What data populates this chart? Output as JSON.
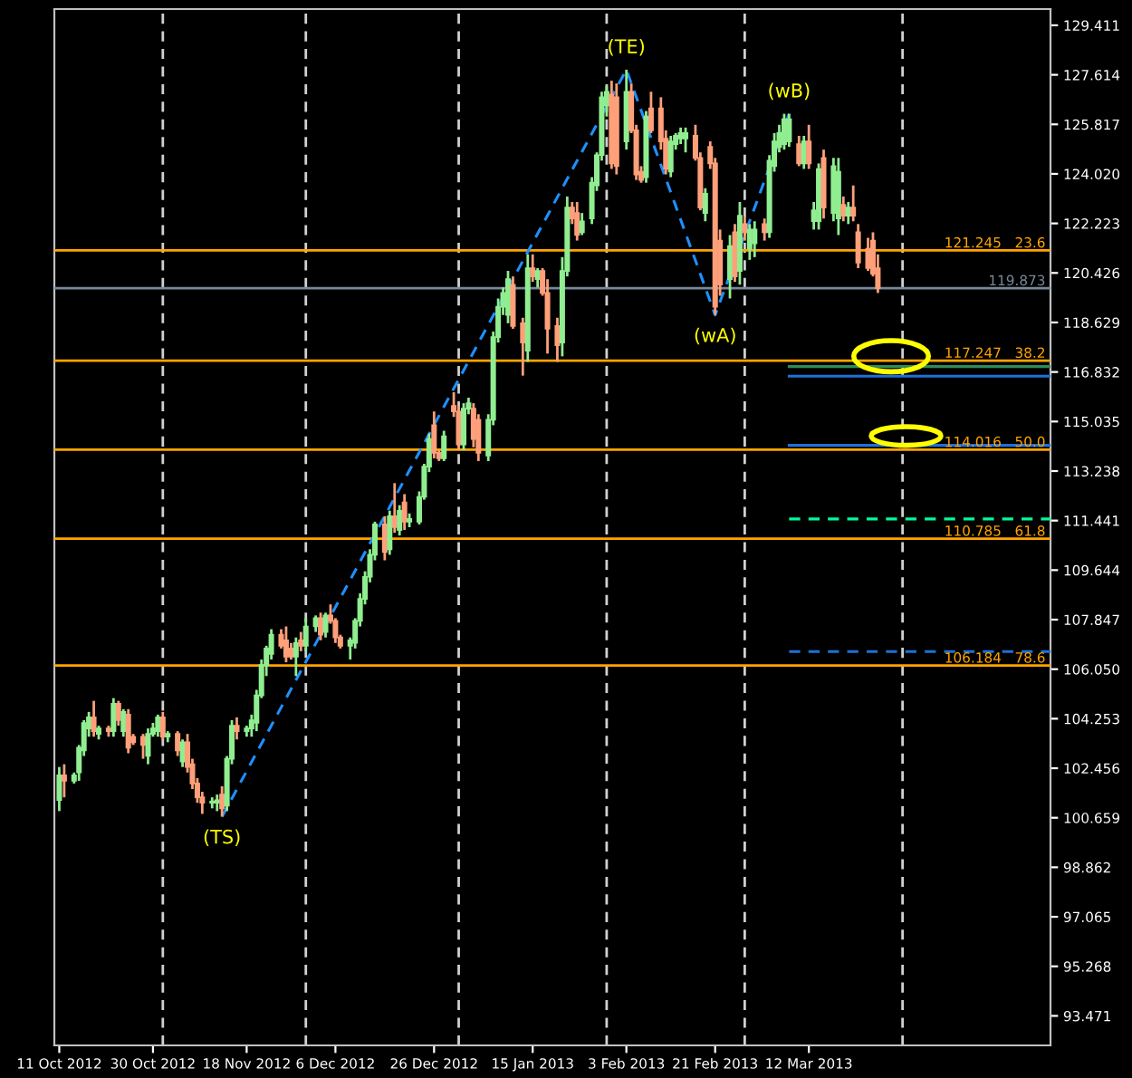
{
  "chart_data": {
    "type": "candlestick",
    "x": [
      "2012-10-11",
      "2012-10-12",
      "2012-10-14",
      "2012-10-15",
      "2012-10-16",
      "2012-10-17",
      "2012-10-18",
      "2012-10-19",
      "2012-10-21",
      "2012-10-22",
      "2012-10-23",
      "2012-10-24",
      "2012-10-25",
      "2012-10-26",
      "2012-10-28",
      "2012-10-29",
      "2012-10-30",
      "2012-10-31",
      "2012-11-01",
      "2012-11-02",
      "2012-11-04",
      "2012-11-05",
      "2012-11-06",
      "2012-11-07",
      "2012-11-08",
      "2012-11-09",
      "2012-11-11",
      "2012-11-12",
      "2012-11-13",
      "2012-11-14",
      "2012-11-15",
      "2012-11-16",
      "2012-11-18",
      "2012-11-19",
      "2012-11-20",
      "2012-11-21",
      "2012-11-22",
      "2012-11-23",
      "2012-11-25",
      "2012-11-26",
      "2012-11-27",
      "2012-11-28",
      "2012-11-29",
      "2012-11-30",
      "2012-12-02",
      "2012-12-03",
      "2012-12-04",
      "2012-12-05",
      "2012-12-06",
      "2012-12-07",
      "2012-12-09",
      "2012-12-10",
      "2012-12-11",
      "2012-12-12",
      "2012-12-13",
      "2012-12-14",
      "2012-12-16",
      "2012-12-17",
      "2012-12-18",
      "2012-12-19",
      "2012-12-20",
      "2012-12-21",
      "2012-12-23",
      "2012-12-24",
      "2012-12-25",
      "2012-12-26",
      "2012-12-27",
      "2012-12-28",
      "2012-12-30",
      "2012-12-31",
      "2013-01-01",
      "2013-01-02",
      "2013-01-03",
      "2013-01-04",
      "2013-01-06",
      "2013-01-07",
      "2013-01-08",
      "2013-01-09",
      "2013-01-10",
      "2013-01-11",
      "2013-01-13",
      "2013-01-14",
      "2013-01-15",
      "2013-01-16",
      "2013-01-17",
      "2013-01-18",
      "2013-01-20",
      "2013-01-21",
      "2013-01-22",
      "2013-01-23",
      "2013-01-24",
      "2013-01-25",
      "2013-01-27",
      "2013-01-28",
      "2013-01-29",
      "2013-01-30",
      "2013-01-31",
      "2013-02-01",
      "2013-02-03",
      "2013-02-04",
      "2013-02-05",
      "2013-02-06",
      "2013-02-07",
      "2013-02-08",
      "2013-02-10",
      "2013-02-11",
      "2013-02-12",
      "2013-02-13",
      "2013-02-14",
      "2013-02-15",
      "2013-02-17",
      "2013-02-18",
      "2013-02-19",
      "2013-02-20",
      "2013-02-21",
      "2013-02-22",
      "2013-02-24",
      "2013-02-25",
      "2013-02-26",
      "2013-02-27",
      "2013-02-28",
      "2013-03-01",
      "2013-03-03",
      "2013-03-04",
      "2013-03-05",
      "2013-03-06",
      "2013-03-07",
      "2013-03-08",
      "2013-03-10",
      "2013-03-11",
      "2013-03-12",
      "2013-03-13",
      "2013-03-14",
      "2013-03-15",
      "2013-03-17",
      "2013-03-18",
      "2013-03-19",
      "2013-03-20",
      "2013-03-21",
      "2013-03-22",
      "2013-03-24",
      "2013-03-25",
      "2013-03-26"
    ],
    "ohlc": [
      [
        101.3,
        102.5,
        100.9,
        102.2
      ],
      [
        102.2,
        102.6,
        101.4,
        102.0
      ],
      [
        102.0,
        102.3,
        101.9,
        102.2
      ],
      [
        102.3,
        103.3,
        102.0,
        103.2
      ],
      [
        103.1,
        104.2,
        102.9,
        104.1
      ],
      [
        103.9,
        104.5,
        103.6,
        104.3
      ],
      [
        104.3,
        104.9,
        103.6,
        103.8
      ],
      [
        103.7,
        104.0,
        103.5,
        103.9
      ],
      [
        103.9,
        104.0,
        103.6,
        103.8
      ],
      [
        103.8,
        105.0,
        103.6,
        104.8
      ],
      [
        104.8,
        104.9,
        104.0,
        104.2
      ],
      [
        103.8,
        104.6,
        103.6,
        104.5
      ],
      [
        104.4,
        104.6,
        103.0,
        103.2
      ],
      [
        103.6,
        103.7,
        103.3,
        103.4
      ],
      [
        103.6,
        103.7,
        102.8,
        103.3
      ],
      [
        102.9,
        103.9,
        102.6,
        103.7
      ],
      [
        103.7,
        104.1,
        103.6,
        103.9
      ],
      [
        103.8,
        104.4,
        103.6,
        104.3
      ],
      [
        104.3,
        104.5,
        103.5,
        103.6
      ],
      [
        103.6,
        103.8,
        103.4,
        103.7
      ],
      [
        103.7,
        103.8,
        102.9,
        103.1
      ],
      [
        102.7,
        103.5,
        102.5,
        103.4
      ],
      [
        103.4,
        103.7,
        102.3,
        102.5
      ],
      [
        102.6,
        102.8,
        101.7,
        101.9
      ],
      [
        101.9,
        102.1,
        101.2,
        101.4
      ],
      [
        101.4,
        101.6,
        100.8,
        101.2
      ],
      [
        101.2,
        101.4,
        101.0,
        101.25
      ],
      [
        101.2,
        101.5,
        100.9,
        101.3
      ],
      [
        101.5,
        101.8,
        100.7,
        101.0
      ],
      [
        101.1,
        102.9,
        100.9,
        102.8
      ],
      [
        102.8,
        104.2,
        102.6,
        104.0
      ],
      [
        104.0,
        104.3,
        103.5,
        103.8
      ],
      [
        103.8,
        104.0,
        103.6,
        103.9
      ],
      [
        103.9,
        104.4,
        103.6,
        104.2
      ],
      [
        104.1,
        105.3,
        103.8,
        105.1
      ],
      [
        105.1,
        106.4,
        105.0,
        106.2
      ],
      [
        106.2,
        106.9,
        105.8,
        106.8
      ],
      [
        106.6,
        107.5,
        106.4,
        107.3
      ],
      [
        107.3,
        107.5,
        106.8,
        106.9
      ],
      [
        107.1,
        107.6,
        106.3,
        106.5
      ],
      [
        106.8,
        107.0,
        106.4,
        106.5
      ],
      [
        106.5,
        107.2,
        105.8,
        107.0
      ],
      [
        107.1,
        107.4,
        106.7,
        106.9
      ],
      [
        106.9,
        107.9,
        106.7,
        107.6
      ],
      [
        107.6,
        108.0,
        107.4,
        107.9
      ],
      [
        107.9,
        108.1,
        107.1,
        107.3
      ],
      [
        107.4,
        108.1,
        107.2,
        108.0
      ],
      [
        108.0,
        108.4,
        107.7,
        107.8
      ],
      [
        107.8,
        107.9,
        107.0,
        107.2
      ],
      [
        107.2,
        107.3,
        106.8,
        106.9
      ],
      [
        106.9,
        107.2,
        106.4,
        107.1
      ],
      [
        107.0,
        107.9,
        106.8,
        107.8
      ],
      [
        107.8,
        108.8,
        107.6,
        108.6
      ],
      [
        108.6,
        109.6,
        108.4,
        109.4
      ],
      [
        109.4,
        110.4,
        109.2,
        110.2
      ],
      [
        110.2,
        111.4,
        110.0,
        111.3
      ],
      [
        111.3,
        111.6,
        110.0,
        110.3
      ],
      [
        110.4,
        111.8,
        110.2,
        111.6
      ],
      [
        111.6,
        112.8,
        111.0,
        111.2
      ],
      [
        111.1,
        112.0,
        110.9,
        111.8
      ],
      [
        112.1,
        112.4,
        111.1,
        111.4
      ],
      [
        111.4,
        111.7,
        111.2,
        111.5
      ],
      [
        111.4,
        112.5,
        111.3,
        112.3
      ],
      [
        112.3,
        113.5,
        112.2,
        113.4
      ],
      [
        113.4,
        114.6,
        113.2,
        114.4
      ],
      [
        114.9,
        115.4,
        113.7,
        113.9
      ],
      [
        113.9,
        114.0,
        113.6,
        113.7
      ],
      [
        113.7,
        114.7,
        113.6,
        114.5
      ],
      [
        115.6,
        116.1,
        115.2,
        115.4
      ],
      [
        115.4,
        115.6,
        114.0,
        114.2
      ],
      [
        114.2,
        115.7,
        114.0,
        115.5
      ],
      [
        115.5,
        115.9,
        115.3,
        115.7
      ],
      [
        115.5,
        115.7,
        114.1,
        114.4
      ],
      [
        115.1,
        115.3,
        113.6,
        113.9
      ],
      [
        113.8,
        115.3,
        113.6,
        115.1
      ],
      [
        115.1,
        118.3,
        114.9,
        118.1
      ],
      [
        118.1,
        119.5,
        117.9,
        119.2
      ],
      [
        119.2,
        119.9,
        118.9,
        119.7
      ],
      [
        118.9,
        120.5,
        118.6,
        120.2
      ],
      [
        120.0,
        120.3,
        118.4,
        118.5
      ],
      [
        118.6,
        118.8,
        116.7,
        117.9
      ],
      [
        117.6,
        121.1,
        117.2,
        120.6
      ],
      [
        120.6,
        121.1,
        120.1,
        120.3
      ],
      [
        120.2,
        120.6,
        119.9,
        120.5
      ],
      [
        120.5,
        120.6,
        119.6,
        119.7
      ],
      [
        119.7,
        120.2,
        117.5,
        118.4
      ],
      [
        118.5,
        118.8,
        117.2,
        117.8
      ],
      [
        117.9,
        121.0,
        117.4,
        120.5
      ],
      [
        120.5,
        123.2,
        120.3,
        122.8
      ],
      [
        122.8,
        123.0,
        122.2,
        122.4
      ],
      [
        122.6,
        123.0,
        121.6,
        121.8
      ],
      [
        121.9,
        122.6,
        121.8,
        122.3
      ],
      [
        122.4,
        123.9,
        122.2,
        123.7
      ],
      [
        123.6,
        124.8,
        123.4,
        124.7
      ],
      [
        124.7,
        127.0,
        124.5,
        126.8
      ],
      [
        126.5,
        127.2,
        126.1,
        127.0
      ],
      [
        126.9,
        127.4,
        124.2,
        124.4
      ],
      [
        126.8,
        127.3,
        124.0,
        124.3
      ],
      [
        125.2,
        127.8,
        124.9,
        127.0
      ],
      [
        127.0,
        127.3,
        125.5,
        125.6
      ],
      [
        125.6,
        125.8,
        123.8,
        124.0
      ],
      [
        124.1,
        124.3,
        123.7,
        123.8
      ],
      [
        123.9,
        126.3,
        123.7,
        126.1
      ],
      [
        126.4,
        127.0,
        125.5,
        125.6
      ],
      [
        126.4,
        126.8,
        124.9,
        125.2
      ],
      [
        125.3,
        125.6,
        124.0,
        124.2
      ],
      [
        124.1,
        125.4,
        123.9,
        125.2
      ],
      [
        125.1,
        125.5,
        124.9,
        125.4
      ],
      [
        125.3,
        125.7,
        125.1,
        125.5
      ],
      [
        125.3,
        125.7,
        124.8,
        125.5
      ],
      [
        125.4,
        125.8,
        124.5,
        124.6
      ],
      [
        124.6,
        124.8,
        122.7,
        122.8
      ],
      [
        122.6,
        123.5,
        122.3,
        123.3
      ],
      [
        125.0,
        125.2,
        124.2,
        124.4
      ],
      [
        124.4,
        124.6,
        118.9,
        119.2
      ],
      [
        121.6,
        122.0,
        119.6,
        120.0
      ],
      [
        120.2,
        121.8,
        119.5,
        121.4
      ],
      [
        121.9,
        122.2,
        120.1,
        120.3
      ],
      [
        120.5,
        123.0,
        120.0,
        122.5
      ],
      [
        122.2,
        122.5,
        121.6,
        121.9
      ],
      [
        121.3,
        122.2,
        120.9,
        122.0
      ],
      [
        121.5,
        122.3,
        121.0,
        122.0
      ],
      [
        122.2,
        122.4,
        121.6,
        121.9
      ],
      [
        121.9,
        124.7,
        121.7,
        124.5
      ],
      [
        124.3,
        125.5,
        124.1,
        125.2
      ],
      [
        125.0,
        125.8,
        124.8,
        125.5
      ],
      [
        125.1,
        126.2,
        124.9,
        126.0
      ],
      [
        125.2,
        126.2,
        125.0,
        126.0
      ],
      [
        125.1,
        125.4,
        124.3,
        124.4
      ],
      [
        124.4,
        125.4,
        124.2,
        125.2
      ],
      [
        125.2,
        125.8,
        124.2,
        124.4
      ],
      [
        122.3,
        123.0,
        122.0,
        122.7
      ],
      [
        122.3,
        124.4,
        122.0,
        124.2
      ],
      [
        124.6,
        124.9,
        122.4,
        122.8
      ],
      [
        122.6,
        124.6,
        122.3,
        124.3
      ],
      [
        122.4,
        124.6,
        121.8,
        124.1
      ],
      [
        122.9,
        123.2,
        122.3,
        122.5
      ],
      [
        122.5,
        123.0,
        122.2,
        122.8
      ],
      [
        122.8,
        123.6,
        122.3,
        122.5
      ],
      [
        121.9,
        122.2,
        120.6,
        120.8
      ],
      [
        121.3,
        121.7,
        120.5,
        120.6
      ],
      [
        121.6,
        121.9,
        120.3,
        120.4
      ],
      [
        120.6,
        121.1,
        119.7,
        119.873
      ]
    ],
    "colors": [
      "#90ee90",
      "#ffa07a",
      "#90ee90",
      "#90ee90",
      "#90ee90",
      "#90ee90",
      "#ffa07a",
      "#90ee90",
      "#ffa07a",
      "#90ee90",
      "#ffa07a",
      "#90ee90",
      "#ffa07a",
      "#ffa07a",
      "#ffa07a",
      "#90ee90",
      "#90ee90",
      "#90ee90",
      "#ffa07a",
      "#90ee90",
      "#ffa07a",
      "#90ee90",
      "#ffa07a",
      "#ffa07a",
      "#ffa07a",
      "#ffa07a",
      "#90ee90",
      "#90ee90",
      "#ffa07a",
      "#90ee90",
      "#90ee90",
      "#ffa07a",
      "#90ee90",
      "#90ee90",
      "#90ee90",
      "#90ee90",
      "#90ee90",
      "#90ee90",
      "#ffa07a",
      "#ffa07a",
      "#ffa07a",
      "#90ee90",
      "#ffa07a",
      "#90ee90",
      "#90ee90",
      "#ffa07a",
      "#90ee90",
      "#ffa07a",
      "#ffa07a",
      "#ffa07a",
      "#90ee90",
      "#90ee90",
      "#90ee90",
      "#90ee90",
      "#90ee90",
      "#90ee90",
      "#ffa07a",
      "#90ee90",
      "#ffa07a",
      "#90ee90",
      "#ffa07a",
      "#90ee90",
      "#90ee90",
      "#90ee90",
      "#90ee90",
      "#ffa07a",
      "#ffa07a",
      "#90ee90",
      "#ffa07a",
      "#ffa07a",
      "#90ee90",
      "#90ee90",
      "#ffa07a",
      "#ffa07a",
      "#90ee90",
      "#90ee90",
      "#90ee90",
      "#90ee90",
      "#90ee90",
      "#ffa07a",
      "#ffa07a",
      "#90ee90",
      "#ffa07a",
      "#90ee90",
      "#ffa07a",
      "#ffa07a",
      "#ffa07a",
      "#90ee90",
      "#90ee90",
      "#ffa07a",
      "#ffa07a",
      "#90ee90",
      "#90ee90",
      "#90ee90",
      "#90ee90",
      "#90ee90",
      "#ffa07a",
      "#ffa07a",
      "#90ee90",
      "#ffa07a",
      "#ffa07a",
      "#ffa07a",
      "#90ee90",
      "#ffa07a",
      "#ffa07a",
      "#ffa07a",
      "#90ee90",
      "#90ee90",
      "#90ee90",
      "#90ee90",
      "#ffa07a",
      "#ffa07a",
      "#90ee90",
      "#ffa07a",
      "#ffa07a",
      "#ffa07a",
      "#90ee90",
      "#ffa07a",
      "#90ee90",
      "#ffa07a",
      "#90ee90",
      "#90ee90",
      "#ffa07a",
      "#90ee90",
      "#90ee90",
      "#90ee90",
      "#90ee90",
      "#90ee90",
      "#ffa07a",
      "#90ee90",
      "#ffa07a",
      "#90ee90",
      "#90ee90",
      "#ffa07a",
      "#90ee90",
      "#90ee90",
      "#ffa07a",
      "#90ee90",
      "#ffa07a",
      "#ffa07a",
      "#ffa07a",
      "#ffa07a",
      "#ffa07a"
    ],
    "series": [
      {
        "type": "line",
        "x": [
          "2012-11-13",
          "2013-02-03",
          "2013-02-21",
          "2013-03-08"
        ],
        "values": [
          100.7,
          127.8,
          118.9,
          126.2
        ],
        "value_labels": [
          "(TS)",
          "(TE)",
          "(wA)",
          "(wB)"
        ],
        "color": "#1e90ff",
        "line_style": "dashed"
      },
      {
        "type": "line",
        "x": [
          "2013-03-08",
          "2013-04-30"
        ],
        "values": [
          117.03,
          117.03
        ],
        "color": "#2e8b57",
        "line_style": "solid"
      },
      {
        "type": "line",
        "x": [
          "2013-03-08",
          "2013-04-30"
        ],
        "values": [
          116.68,
          116.68
        ],
        "color": "#1e6fd9",
        "line_style": "solid"
      },
      {
        "type": "line",
        "x": [
          "2013-03-08",
          "2013-04-30"
        ],
        "values": [
          114.17,
          114.17
        ],
        "color": "#1e6fd9",
        "line_style": "solid"
      },
      {
        "type": "line",
        "x": [
          "2013-03-08",
          "2013-04-30"
        ],
        "values": [
          111.5,
          111.5
        ],
        "color": "#00fa9a",
        "line_style": "dashed"
      },
      {
        "type": "line",
        "x": [
          "2013-03-08",
          "2013-04-30"
        ],
        "values": [
          106.69,
          106.69
        ],
        "color": "#1e6fd9",
        "line_style": "dashed"
      }
    ],
    "ref_lines": [
      {
        "axis": "y",
        "value": 121.245,
        "label": "121.245   23.6",
        "color": "#ffa500"
      },
      {
        "axis": "y",
        "value": 117.247,
        "label": "117.247   38.2",
        "color": "#ffa500"
      },
      {
        "axis": "y",
        "value": 114.016,
        "label": "114.016   50.0",
        "color": "#ffa500"
      },
      {
        "axis": "y",
        "value": 110.785,
        "label": "110.785   61.8",
        "color": "#ffa500"
      },
      {
        "axis": "y",
        "value": 106.184,
        "label": "106.184   78.6",
        "color": "#ffa500"
      },
      {
        "axis": "y",
        "value": 119.873,
        "label": "119.873",
        "color": "#778899"
      },
      {
        "axis": "x",
        "value": "2012-11-01",
        "color": "#d0d0d0",
        "line_style": "dashed"
      },
      {
        "axis": "x",
        "value": "2012-11-30",
        "color": "#d0d0d0",
        "line_style": "dashed"
      },
      {
        "axis": "x",
        "value": "2012-12-31",
        "color": "#d0d0d0",
        "line_style": "dashed"
      },
      {
        "axis": "x",
        "value": "2013-01-30",
        "color": "#d0d0d0",
        "line_style": "dashed"
      },
      {
        "axis": "x",
        "value": "2013-02-27",
        "color": "#d0d0d0",
        "line_style": "dashed"
      },
      {
        "axis": "x",
        "value": "2013-03-31",
        "color": "#d0d0d0",
        "line_style": "dashed"
      }
    ],
    "xlim": [
      "2012-10-10",
      "2013-04-30"
    ],
    "xticks": [
      {
        "value": "2012-10-11",
        "label": "11 Oct 2012"
      },
      {
        "value": "2012-10-30",
        "label": "30 Oct 2012"
      },
      {
        "value": "2012-11-18",
        "label": "18 Nov 2012"
      },
      {
        "value": "2012-12-06",
        "label": "6 Dec 2012"
      },
      {
        "value": "2012-12-26",
        "label": "26 Dec 2012"
      },
      {
        "value": "2013-01-15",
        "label": "15 Jan 2013"
      },
      {
        "value": "2013-02-03",
        "label": "3 Feb 2013"
      },
      {
        "value": "2013-02-21",
        "label": "21 Feb 2013"
      },
      {
        "value": "2013-03-12",
        "label": "12 Mar 2013"
      }
    ],
    "ylim": [
      92.4,
      130.0
    ],
    "yticks": [
      129.411,
      127.614,
      125.817,
      {
        "value": 124.02,
        "label": "124.020"
      },
      122.223,
      120.426,
      118.629,
      116.832,
      115.035,
      113.238,
      111.441,
      109.644,
      107.847,
      {
        "value": 106.05,
        "label": "106.050"
      },
      104.253,
      102.456,
      100.659,
      98.862,
      97.065,
      95.268,
      93.471
    ],
    "grid": false,
    "legend": false
  }
}
